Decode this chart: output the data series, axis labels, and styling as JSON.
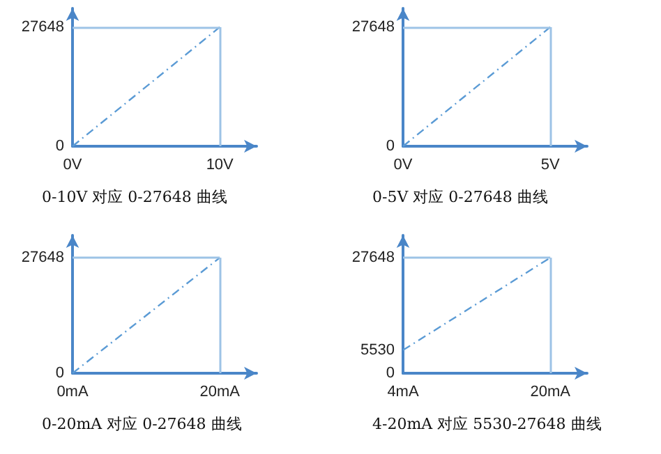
{
  "chart_data": [
    {
      "type": "line",
      "title": "0-10V 对应 0-27648 曲线",
      "x": [
        0,
        10
      ],
      "values": [
        0,
        27648
      ],
      "color": "#5b9bd5",
      "line_style": "dashed",
      "marker": "none",
      "xlim": [
        0,
        12.5
      ],
      "ylim": [
        0,
        32000
      ],
      "xticks": [
        {
          "value": 0,
          "label": "0V"
        },
        {
          "value": 10,
          "label": "10V"
        }
      ],
      "yticks": [
        0,
        27648
      ],
      "ref_lines": [
        {
          "axis": "x",
          "value": 10,
          "color": "#9dc3e6"
        },
        {
          "axis": "y",
          "value": 27648,
          "color": "#9dc3e6"
        }
      ],
      "grid": false
    },
    {
      "type": "line",
      "title": "0-5V 对应 0-27648 曲线",
      "x": [
        0,
        5
      ],
      "values": [
        0,
        27648
      ],
      "color": "#5b9bd5",
      "line_style": "dashed",
      "marker": "none",
      "xlim": [
        0,
        6.25
      ],
      "ylim": [
        0,
        32000
      ],
      "xticks": [
        {
          "value": 0,
          "label": "0V"
        },
        {
          "value": 5,
          "label": "5V"
        }
      ],
      "yticks": [
        0,
        27648
      ],
      "ref_lines": [
        {
          "axis": "x",
          "value": 5,
          "color": "#9dc3e6"
        },
        {
          "axis": "y",
          "value": 27648,
          "color": "#9dc3e6"
        }
      ],
      "grid": false
    },
    {
      "type": "line",
      "title": "0-20mA 对应 0-27648 曲线",
      "x": [
        0,
        20
      ],
      "values": [
        0,
        27648
      ],
      "color": "#5b9bd5",
      "line_style": "dashed",
      "marker": "none",
      "xlim": [
        0,
        25
      ],
      "ylim": [
        0,
        33000
      ],
      "xticks": [
        {
          "value": 0,
          "label": "0mA"
        },
        {
          "value": 20,
          "label": "20mA"
        }
      ],
      "yticks": [
        0,
        27648
      ],
      "ref_lines": [
        {
          "axis": "x",
          "value": 20,
          "color": "#9dc3e6"
        },
        {
          "axis": "y",
          "value": 27648,
          "color": "#9dc3e6"
        }
      ],
      "grid": false
    },
    {
      "type": "line",
      "title": "4-20mA 对应 5530-27648 曲线",
      "x": [
        4,
        20
      ],
      "values": [
        5530,
        27648
      ],
      "color": "#5b9bd5",
      "line_style": "dashed",
      "marker": "none",
      "xlim": [
        4,
        24
      ],
      "ylim": [
        0,
        33000
      ],
      "xticks": [
        {
          "value": 4,
          "label": "4mA"
        },
        {
          "value": 20,
          "label": "20mA"
        }
      ],
      "yticks": [
        0,
        5530,
        27648
      ],
      "ref_lines": [
        {
          "axis": "x",
          "value": 20,
          "color": "#9dc3e6"
        },
        {
          "axis": "y",
          "value": 27648,
          "color": "#9dc3e6"
        }
      ],
      "grid": false
    }
  ]
}
